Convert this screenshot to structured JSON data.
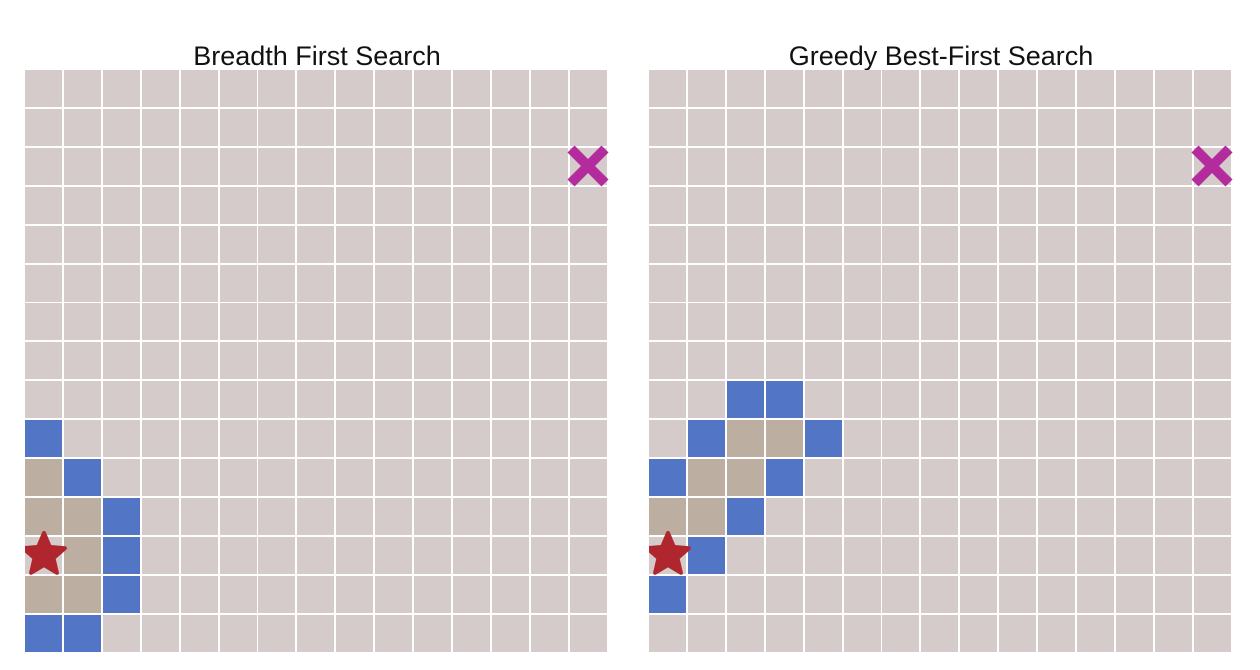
{
  "colors": {
    "background": "#ffffff",
    "grid_line": "#ffffff",
    "unvisited": "#d5cbcb",
    "visited": "#bdaea2",
    "frontier": "#5275c6",
    "start": "#b0262f",
    "goal": "#b32b9c"
  },
  "panels": [
    {
      "title": "Breadth First Search",
      "columns": 15,
      "rows": 15,
      "start_icon": "star-icon",
      "goal_icon": "x-mark-icon",
      "start": [
        0,
        12
      ],
      "goal": [
        14,
        2
      ],
      "frontier": [
        [
          0,
          9
        ],
        [
          1,
          10
        ],
        [
          2,
          11
        ],
        [
          2,
          12
        ],
        [
          2,
          13
        ],
        [
          0,
          14
        ],
        [
          1,
          14
        ]
      ],
      "visited": [
        [
          0,
          10
        ],
        [
          0,
          11
        ],
        [
          1,
          11
        ],
        [
          1,
          12
        ],
        [
          0,
          13
        ],
        [
          1,
          13
        ]
      ]
    },
    {
      "title": "Greedy Best-First Search",
      "columns": 15,
      "rows": 15,
      "start_icon": "star-icon",
      "goal_icon": "x-mark-icon",
      "start": [
        0,
        12
      ],
      "goal": [
        14,
        2
      ],
      "frontier": [
        [
          2,
          8
        ],
        [
          3,
          8
        ],
        [
          1,
          9
        ],
        [
          4,
          9
        ],
        [
          0,
          10
        ],
        [
          3,
          10
        ],
        [
          2,
          11
        ],
        [
          1,
          12
        ],
        [
          0,
          13
        ]
      ],
      "visited": [
        [
          2,
          9
        ],
        [
          3,
          9
        ],
        [
          1,
          10
        ],
        [
          2,
          10
        ],
        [
          0,
          11
        ],
        [
          1,
          11
        ]
      ]
    }
  ]
}
